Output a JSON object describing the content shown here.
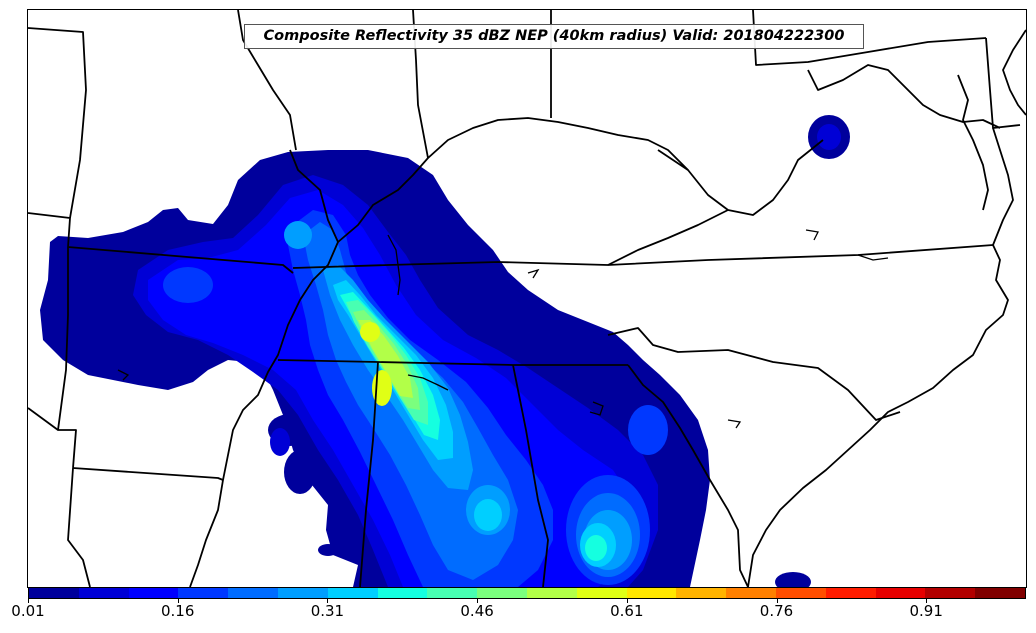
{
  "map": {
    "title": "Composite Reflectivity 35 dBZ NEP (40km radius) Valid: 201804222300",
    "field": "neighborhood-probability-contours",
    "boundaries": "state-and-coastline-outlines"
  },
  "colorbar": {
    "colors": [
      "#00009c",
      "#0000d6",
      "#0000ff",
      "#0038ff",
      "#006cff",
      "#009eff",
      "#00cfff",
      "#15ffe0",
      "#48ffb2",
      "#7bff7e",
      "#b2ff48",
      "#e0ff15",
      "#ffe600",
      "#ffb300",
      "#ff8000",
      "#ff4e00",
      "#ff1c00",
      "#e60000",
      "#b20000",
      "#800000"
    ],
    "tick_labels": [
      "0.01",
      "0.16",
      "0.31",
      "0.46",
      "0.61",
      "0.76",
      "0.91"
    ]
  }
}
